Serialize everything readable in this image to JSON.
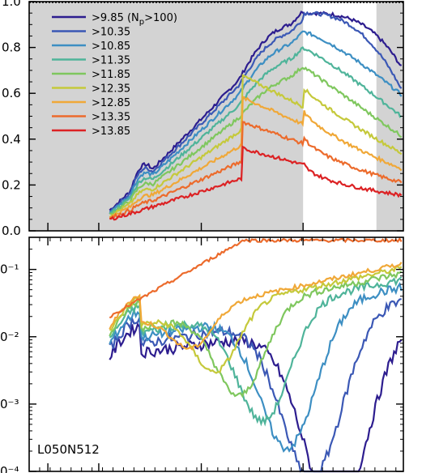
{
  "chart_data": [
    {
      "type": "line",
      "panel": "top",
      "ylim": [
        0.0,
        1.0
      ],
      "xlim": [
        0,
        1
      ],
      "grid": false,
      "legend_position": "top-left",
      "yticks": [
        {
          "value": 0.0,
          "label": "0.0"
        },
        {
          "value": 0.2,
          "label": "0.2"
        },
        {
          "value": 0.4,
          "label": "0.4"
        },
        {
          "value": 0.6,
          "label": "0.6"
        },
        {
          "value": 0.8,
          "label": "0.8"
        },
        {
          "value": 1.0,
          "label": "1.0"
        }
      ],
      "shaded_regions": [
        [
          0.0,
          0.732
        ],
        [
          0.928,
          1.0
        ]
      ],
      "series": [
        {
          "name": ">9.85 (Np>100)",
          "color": "#2d1d8f"
        },
        {
          "name": ">10.35",
          "color": "#3b58b5"
        },
        {
          "name": ">10.85",
          "color": "#3d8fc3"
        },
        {
          "name": ">11.35",
          "color": "#4fb49a"
        },
        {
          "name": ">11.85",
          "color": "#7fc75e"
        },
        {
          "name": ">12.35",
          "color": "#c5c93b"
        },
        {
          "name": ">12.85",
          "color": "#f0a838"
        },
        {
          "name": ">13.35",
          "color": "#ec6b2c"
        },
        {
          "name": ">13.85",
          "color": "#dc2224"
        }
      ]
    },
    {
      "type": "line",
      "panel": "bottom",
      "yscale": "log",
      "ylim": [
        0.0001,
        0.3
      ],
      "xlim": [
        0,
        1
      ],
      "grid": false,
      "yticks": [
        {
          "value": 0.1,
          "label": "0⁻¹"
        },
        {
          "value": 0.01,
          "label": "0⁻²"
        },
        {
          "value": 0.001,
          "label": "0⁻³"
        },
        {
          "value": 0.0001,
          "label": "0⁻⁴"
        }
      ],
      "series_colors": [
        "#2d1d8f",
        "#3b58b5",
        "#3d8fc3",
        "#4fb49a",
        "#7fc75e",
        "#c5c93b",
        "#f0a838",
        "#ec6b2c"
      ]
    }
  ],
  "legend": {
    "entries": [
      {
        "label_main": ">9.85 (N",
        "label_sub": "p",
        "label_tail": ">100)",
        "color": "#2d1d8f"
      },
      {
        "label_main": ">10.35",
        "color": "#3b58b5"
      },
      {
        "label_main": ">10.85",
        "color": "#3d8fc3"
      },
      {
        "label_main": ">11.35",
        "color": "#4fb49a"
      },
      {
        "label_main": ">11.85",
        "color": "#7fc75e"
      },
      {
        "label_main": ">12.35",
        "color": "#c5c93b"
      },
      {
        "label_main": ">12.85",
        "color": "#f0a838"
      },
      {
        "label_main": ">13.35",
        "color": "#ec6b2c"
      },
      {
        "label_main": ">13.85",
        "color": "#dc2224"
      }
    ]
  },
  "annotations": {
    "panel_label": "L050N512"
  }
}
